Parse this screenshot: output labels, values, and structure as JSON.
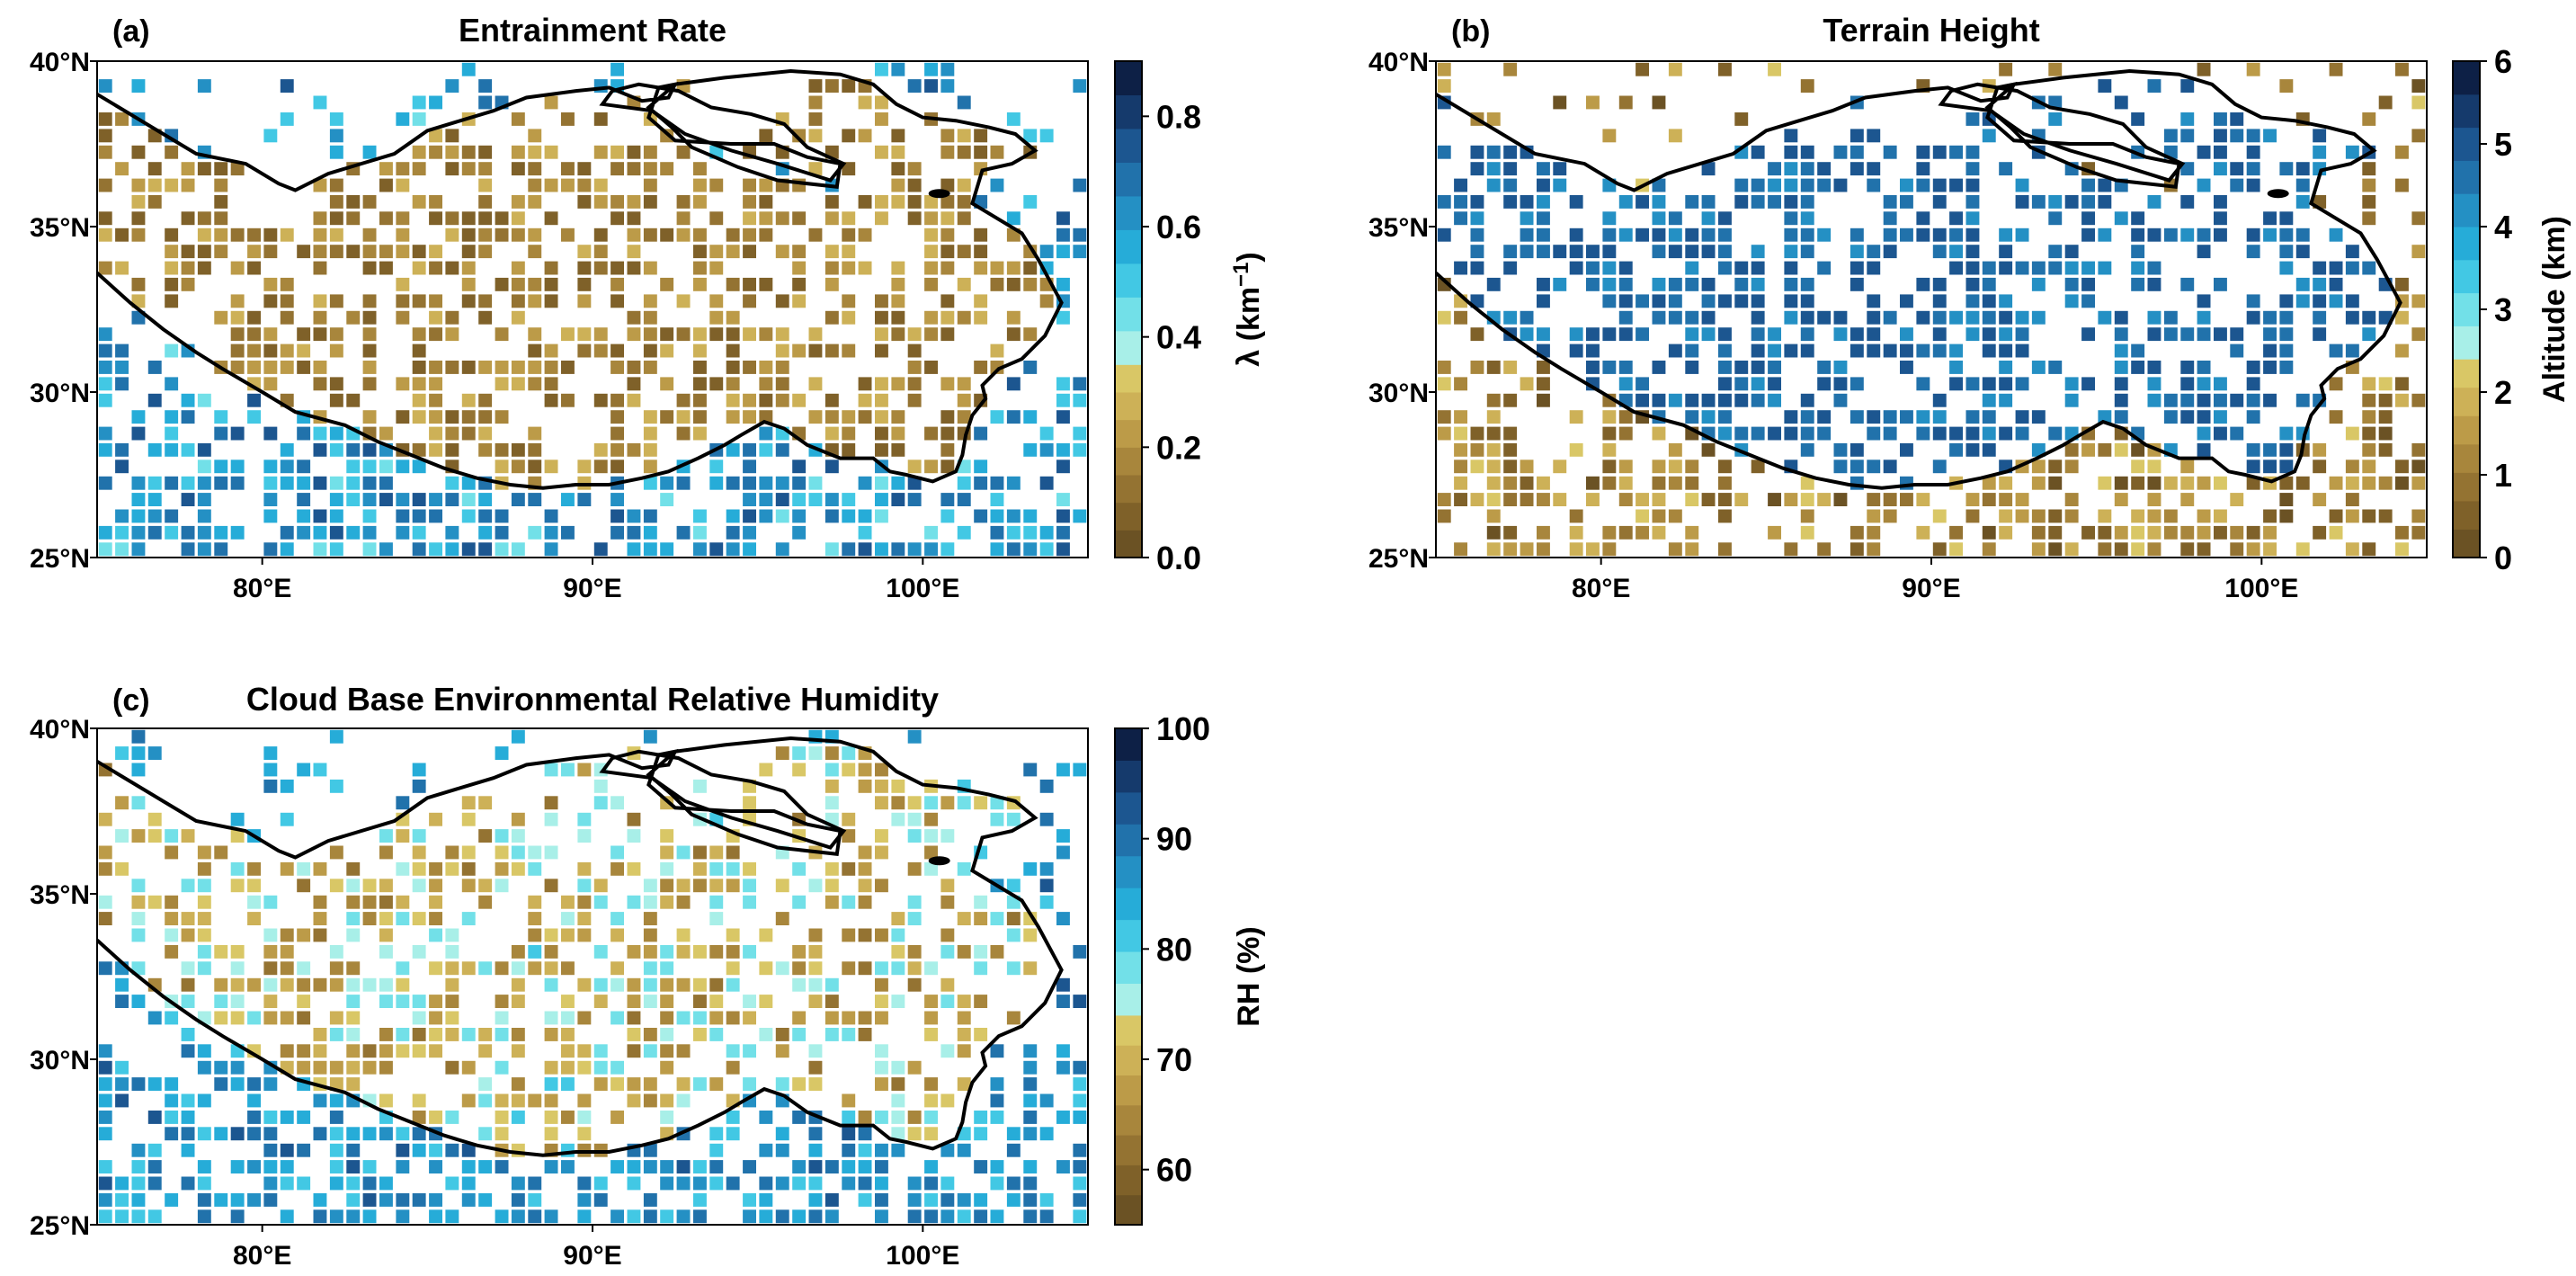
{
  "figure": "Three-panel map of Tibetan Plateau region",
  "chart_data": [
    {
      "type": "heatmap",
      "panel_label": "(a)",
      "title": "Entrainment Rate",
      "colorbar_label": "λ (km",
      "colorbar_label_sup": "−1",
      "colorbar_label_end": ")",
      "colorbar_range": [
        0,
        0.9
      ],
      "colorbar_threshold": 0.35,
      "colorbar_ticks": [
        0.0,
        0.2,
        0.4,
        0.6,
        0.8
      ],
      "colorbar_tick_labels": [
        "0.0",
        "0.2",
        "0.4",
        "0.6",
        "0.8"
      ],
      "field_inside_plateau": [
        0.05,
        0.3
      ],
      "field_outside_plateau": [
        0.45,
        0.75
      ],
      "xlim": [
        75,
        105
      ],
      "ylim": [
        25,
        40
      ]
    },
    {
      "type": "heatmap",
      "panel_label": "(b)",
      "title": "Terrain Height",
      "colorbar_label": "Altitude (km)",
      "colorbar_range": [
        0,
        6
      ],
      "colorbar_threshold": 2.4,
      "colorbar_ticks": [
        0,
        1,
        2,
        3,
        4,
        5,
        6
      ],
      "colorbar_tick_labels": [
        "0",
        "1",
        "2",
        "3",
        "4",
        "5",
        "6"
      ],
      "field_inside_plateau": [
        4.2,
        5.2
      ],
      "field_outside_plateau": [
        0.2,
        2.3
      ],
      "xlim": [
        75,
        105
      ],
      "ylim": [
        25,
        40
      ]
    },
    {
      "type": "heatmap",
      "panel_label": "(c)",
      "title": "Cloud Base Environmental Relative Humidity",
      "colorbar_label": "RH (%)",
      "colorbar_range": [
        55,
        100
      ],
      "colorbar_threshold": 74,
      "colorbar_ticks": [
        60,
        70,
        80,
        90,
        100
      ],
      "colorbar_tick_labels": [
        "60",
        "70",
        "80",
        "90",
        "100"
      ],
      "field_inside_plateau": [
        62,
        80
      ],
      "field_outside_plateau": [
        80,
        92
      ],
      "xlim": [
        75,
        105
      ],
      "ylim": [
        25,
        40
      ]
    }
  ],
  "axes": {
    "x_ticks": [
      80,
      90,
      100
    ],
    "x_tick_labels": [
      "80°E",
      "90°E",
      "100°E"
    ],
    "y_ticks": [
      25,
      30,
      35,
      40
    ],
    "y_tick_labels": [
      "25°N",
      "30°N",
      "35°N",
      "40°N"
    ]
  },
  "plateau_boundary": [
    [
      75,
      39
    ],
    [
      76,
      38.4
    ],
    [
      77,
      37.8
    ],
    [
      78,
      37.2
    ],
    [
      79.5,
      36.9
    ],
    [
      80.5,
      36.3
    ],
    [
      81,
      36.1
    ],
    [
      82,
      36.6
    ],
    [
      84,
      37.2
    ],
    [
      85,
      37.9
    ],
    [
      86,
      38.2
    ],
    [
      87,
      38.5
    ],
    [
      88,
      38.9
    ],
    [
      89.5,
      39.1
    ],
    [
      90.5,
      39.2
    ],
    [
      91.5,
      38.8
    ],
    [
      92.3,
      38.9
    ],
    [
      92.5,
      39.3
    ],
    [
      92,
      39.2
    ],
    [
      91.7,
      38.3
    ],
    [
      92.5,
      37.6
    ],
    [
      94.2,
      37.5
    ],
    [
      95.5,
      37.5
    ],
    [
      96.5,
      37.1
    ],
    [
      97.5,
      36.9
    ],
    [
      97.4,
      36.2
    ],
    [
      95.6,
      36.4
    ],
    [
      94.4,
      36.8
    ],
    [
      93.7,
      37.1
    ],
    [
      93,
      37.4
    ],
    [
      92.4,
      38
    ],
    [
      91.7,
      38.6
    ],
    [
      92.5,
      39.3
    ],
    [
      94,
      39.5
    ],
    [
      96,
      39.7
    ],
    [
      97.5,
      39.6
    ],
    [
      98.5,
      39.3
    ],
    [
      99.2,
      38.7
    ],
    [
      100,
      38.3
    ],
    [
      101,
      38.2
    ],
    [
      102,
      38
    ],
    [
      102.8,
      37.8
    ],
    [
      103.4,
      37.3
    ],
    [
      102.7,
      36.9
    ],
    [
      101.8,
      36.7
    ],
    [
      101.5,
      35.7
    ],
    [
      103,
      34.8
    ],
    [
      103.5,
      34
    ],
    [
      104.2,
      32.7
    ],
    [
      103.7,
      31.7
    ],
    [
      103,
      31
    ],
    [
      102.3,
      30.7
    ],
    [
      101.8,
      30.2
    ],
    [
      101.9,
      29.8
    ],
    [
      101.5,
      29.3
    ],
    [
      101.3,
      28.7
    ],
    [
      101.2,
      28.1
    ],
    [
      101,
      27.6
    ],
    [
      100.3,
      27.3
    ],
    [
      99.5,
      27.5
    ],
    [
      99,
      27.6
    ],
    [
      98.5,
      28
    ],
    [
      97.5,
      28
    ],
    [
      96.5,
      28.4
    ],
    [
      95.8,
      28.9
    ],
    [
      95.2,
      29.1
    ],
    [
      94.5,
      28.7
    ],
    [
      94,
      28.4
    ],
    [
      93.2,
      28
    ],
    [
      92.3,
      27.6
    ],
    [
      91.5,
      27.4
    ],
    [
      90.5,
      27.2
    ],
    [
      89.5,
      27.2
    ],
    [
      88.5,
      27.1
    ],
    [
      87.5,
      27.2
    ],
    [
      86.5,
      27.4
    ],
    [
      85.5,
      27.7
    ],
    [
      84.5,
      28.1
    ],
    [
      83.5,
      28.5
    ],
    [
      82.5,
      29
    ],
    [
      81,
      29.4
    ],
    [
      80,
      30
    ],
    [
      78.8,
      30.7
    ],
    [
      78,
      31.2
    ],
    [
      77,
      31.9
    ],
    [
      76,
      32.7
    ],
    [
      75,
      33.6
    ]
  ],
  "basin_boundary": [
    [
      90.3,
      38.7
    ],
    [
      91.8,
      38.5
    ],
    [
      92.8,
      37.8
    ],
    [
      94.2,
      37.3
    ],
    [
      95.6,
      36.9
    ],
    [
      97.2,
      36.4
    ],
    [
      97.6,
      36.9
    ],
    [
      96.5,
      37.4
    ],
    [
      95.8,
      38.1
    ],
    [
      94.8,
      38.4
    ],
    [
      93.6,
      38.6
    ],
    [
      92.6,
      39.1
    ],
    [
      91.4,
      39.3
    ],
    [
      90.6,
      39.1
    ]
  ],
  "lake": [
    100.5,
    36.0
  ]
}
